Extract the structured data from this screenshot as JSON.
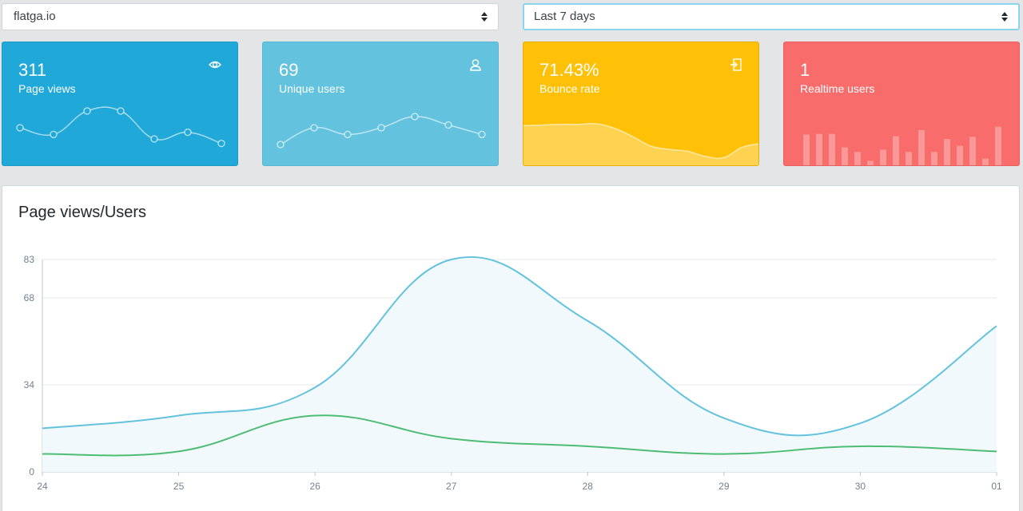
{
  "filters": {
    "site": {
      "value": "flatga.io"
    },
    "range": {
      "value": "Last 7 days"
    }
  },
  "cards": [
    {
      "value": "311",
      "label": "Page views",
      "icon": "eye-icon",
      "color": "#20a8d8"
    },
    {
      "value": "69",
      "label": "Unique users",
      "icon": "user-icon",
      "color": "#63c2de"
    },
    {
      "value": "71.43%",
      "label": "Bounce rate",
      "icon": "logout-icon",
      "color": "#ffc107"
    },
    {
      "value": "1",
      "label": "Realtime users",
      "icon": "",
      "color": "#f86c6b"
    }
  ],
  "sparklines": {
    "page_views": [
      50,
      38,
      80,
      80,
      30,
      42,
      22
    ],
    "unique_users": [
      20,
      50,
      38,
      50,
      70,
      55,
      38
    ],
    "bounce_rate": [
      62,
      63,
      64,
      64,
      65,
      58,
      45,
      30,
      25,
      22,
      14,
      12,
      28,
      34
    ],
    "realtime_users": [
      55,
      56,
      56,
      32,
      24,
      8,
      28,
      52,
      24,
      63,
      24,
      47,
      35,
      51,
      12,
      69
    ]
  },
  "main": {
    "title": "Page views/Users"
  },
  "chart_data": {
    "type": "line",
    "title": "Page views/Users",
    "categories": [
      "24",
      "25",
      "26",
      "27",
      "28",
      "29",
      "30",
      "01"
    ],
    "yticks": [
      0,
      34,
      68,
      83
    ],
    "ylim": [
      0,
      83
    ],
    "grid": true,
    "series": [
      {
        "values": [
          17,
          22,
          33,
          83,
          59,
          21,
          19,
          57
        ],
        "color": "#63c2de",
        "fill": "#f2f9fc"
      },
      {
        "values": [
          7,
          8,
          22,
          13,
          10,
          7,
          10,
          8
        ],
        "color": "#4dbd74"
      }
    ]
  }
}
